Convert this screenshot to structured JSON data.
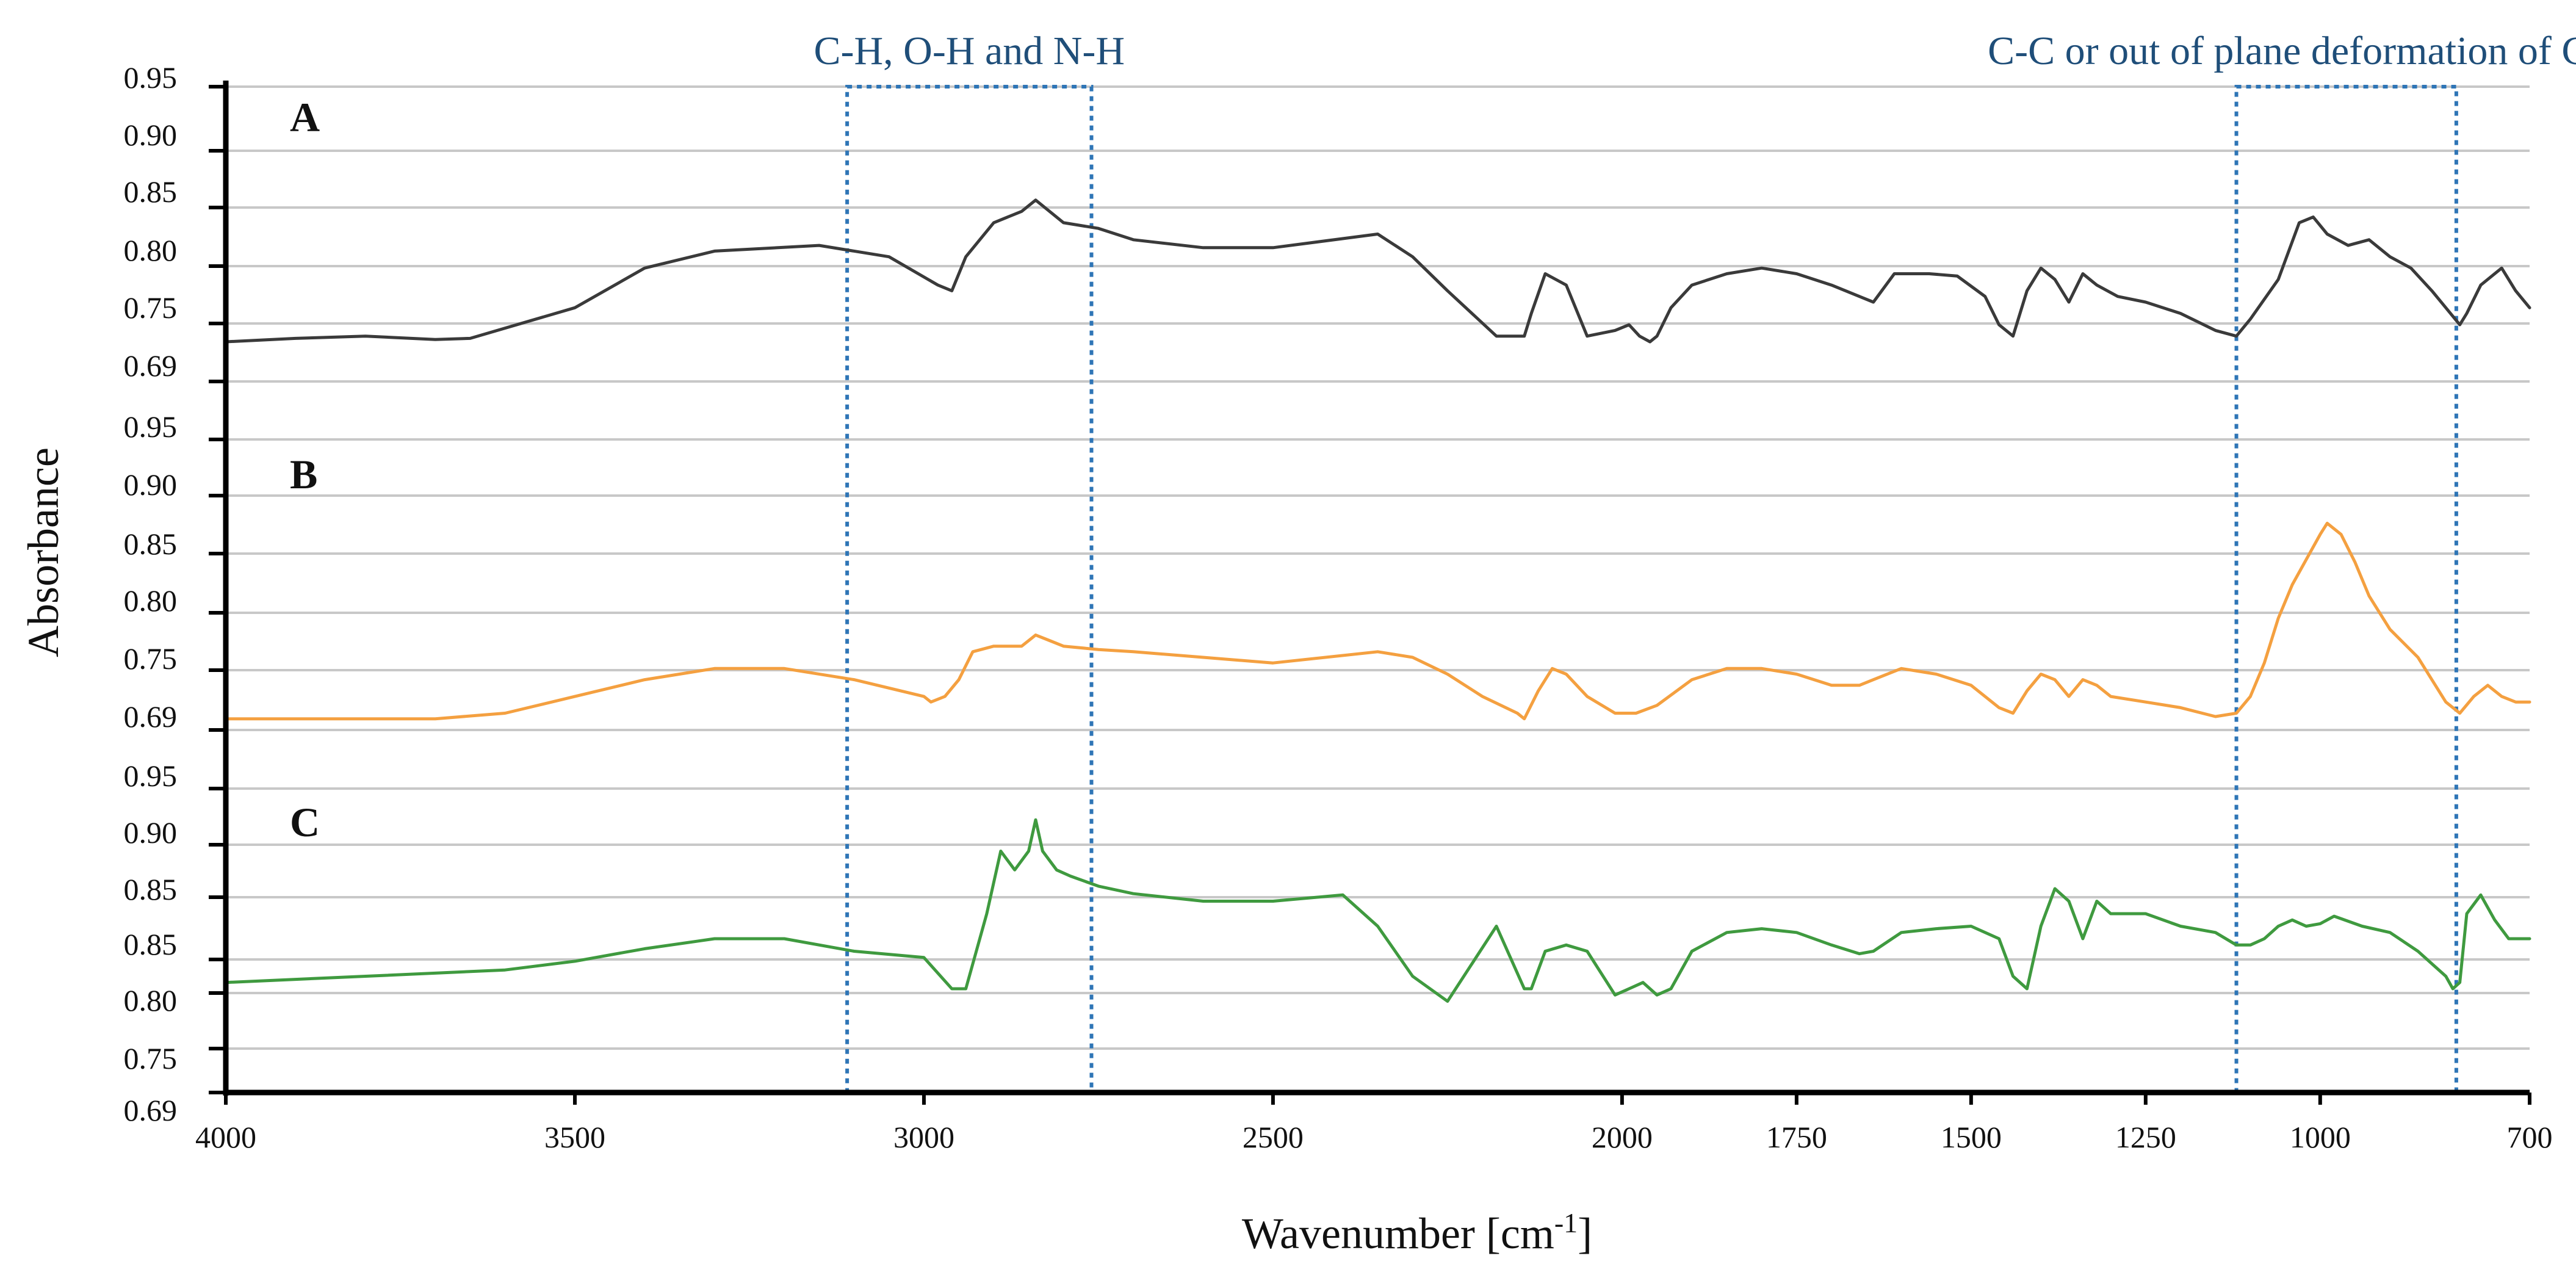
{
  "chart_data": {
    "type": "line",
    "title": "",
    "xlabel": "Wavenumber [cm⁻¹]",
    "ylabel": "Absorbance",
    "xlim": [
      4000,
      700
    ],
    "x_reversed": true,
    "x_ticks": [
      4000,
      3500,
      3000,
      2500,
      2000,
      1750,
      1500,
      1250,
      1000,
      700
    ],
    "grid": true,
    "panels": [
      {
        "label": "A",
        "color": "#3a3a3a",
        "y_ticks": [
          "0.95",
          "0.90",
          "0.85",
          "0.80",
          "0.75",
          "0.69"
        ],
        "ylim": [
          0.69,
          0.95
        ],
        "x": [
          4000,
          3900,
          3800,
          3700,
          3650,
          3500,
          3400,
          3300,
          3150,
          3050,
          2980,
          2960,
          2940,
          2900,
          2880,
          2860,
          2840,
          2820,
          2800,
          2750,
          2700,
          2600,
          2500,
          2350,
          2300,
          2250,
          2180,
          2140,
          2130,
          2110,
          2080,
          2050,
          2010,
          1990,
          1975,
          1960,
          1950,
          1930,
          1900,
          1850,
          1800,
          1750,
          1700,
          1660,
          1640,
          1610,
          1560,
          1520,
          1480,
          1460,
          1440,
          1420,
          1400,
          1380,
          1360,
          1340,
          1320,
          1290,
          1250,
          1200,
          1150,
          1120,
          1100,
          1060,
          1030,
          1010,
          990,
          960,
          930,
          900,
          870,
          840,
          820,
          800,
          790,
          770,
          740,
          720,
          700
        ],
        "y": [
          0.725,
          0.728,
          0.73,
          0.727,
          0.728,
          0.755,
          0.79,
          0.805,
          0.81,
          0.8,
          0.775,
          0.77,
          0.8,
          0.83,
          0.835,
          0.84,
          0.85,
          0.84,
          0.83,
          0.825,
          0.815,
          0.808,
          0.808,
          0.82,
          0.8,
          0.77,
          0.73,
          0.73,
          0.75,
          0.785,
          0.775,
          0.73,
          0.735,
          0.74,
          0.73,
          0.725,
          0.73,
          0.755,
          0.775,
          0.785,
          0.79,
          0.785,
          0.775,
          0.765,
          0.76,
          0.785,
          0.785,
          0.783,
          0.765,
          0.74,
          0.73,
          0.77,
          0.79,
          0.78,
          0.76,
          0.785,
          0.775,
          0.765,
          0.76,
          0.75,
          0.735,
          0.73,
          0.745,
          0.78,
          0.83,
          0.835,
          0.82,
          0.81,
          0.815,
          0.8,
          0.79,
          0.77,
          0.755,
          0.74,
          0.75,
          0.775,
          0.79,
          0.77,
          0.755
        ]
      },
      {
        "label": "B",
        "color": "#f4a040",
        "y_ticks": [
          "0.95",
          "0.90",
          "0.85",
          "0.80",
          "0.75",
          "0.69"
        ],
        "ylim": [
          0.69,
          0.95
        ],
        "x": [
          4000,
          3800,
          3700,
          3600,
          3500,
          3400,
          3300,
          3200,
          3100,
          3000,
          2990,
          2970,
          2950,
          2930,
          2900,
          2860,
          2840,
          2820,
          2800,
          2750,
          2700,
          2600,
          2500,
          2350,
          2300,
          2250,
          2200,
          2150,
          2140,
          2120,
          2100,
          2080,
          2050,
          2010,
          2000,
          1980,
          1950,
          1900,
          1850,
          1800,
          1750,
          1700,
          1660,
          1640,
          1600,
          1550,
          1500,
          1460,
          1440,
          1420,
          1400,
          1380,
          1360,
          1340,
          1320,
          1300,
          1250,
          1200,
          1150,
          1120,
          1100,
          1080,
          1060,
          1040,
          1000,
          990,
          970,
          950,
          930,
          900,
          860,
          840,
          820,
          800,
          780,
          760,
          740,
          720,
          700
        ],
        "y": [
          0.7,
          0.7,
          0.7,
          0.705,
          0.72,
          0.735,
          0.745,
          0.745,
          0.735,
          0.72,
          0.715,
          0.72,
          0.735,
          0.76,
          0.765,
          0.765,
          0.775,
          0.77,
          0.765,
          0.762,
          0.76,
          0.755,
          0.75,
          0.76,
          0.755,
          0.74,
          0.72,
          0.705,
          0.7,
          0.725,
          0.745,
          0.74,
          0.72,
          0.705,
          0.705,
          0.705,
          0.712,
          0.735,
          0.745,
          0.745,
          0.74,
          0.73,
          0.73,
          0.735,
          0.745,
          0.74,
          0.73,
          0.71,
          0.705,
          0.725,
          0.74,
          0.735,
          0.72,
          0.735,
          0.73,
          0.72,
          0.715,
          0.71,
          0.702,
          0.705,
          0.72,
          0.75,
          0.79,
          0.82,
          0.865,
          0.875,
          0.865,
          0.84,
          0.81,
          0.78,
          0.755,
          0.735,
          0.715,
          0.705,
          0.72,
          0.73,
          0.72,
          0.715,
          0.715
        ]
      },
      {
        "label": "C",
        "color": "#3f9a3f",
        "y_ticks": [
          "0.95",
          "0.90",
          "0.85",
          "0.85",
          "0.80",
          "0.75",
          "0.69"
        ],
        "ylim": [
          0.69,
          0.95
        ],
        "x": [
          4000,
          3800,
          3600,
          3500,
          3400,
          3300,
          3200,
          3100,
          3000,
          2960,
          2940,
          2910,
          2890,
          2870,
          2850,
          2840,
          2830,
          2810,
          2790,
          2750,
          2700,
          2600,
          2500,
          2400,
          2350,
          2300,
          2250,
          2180,
          2140,
          2130,
          2110,
          2080,
          2050,
          2010,
          1990,
          1970,
          1950,
          1930,
          1900,
          1850,
          1800,
          1750,
          1700,
          1660,
          1640,
          1600,
          1550,
          1500,
          1460,
          1440,
          1420,
          1400,
          1380,
          1360,
          1340,
          1320,
          1300,
          1250,
          1200,
          1150,
          1120,
          1100,
          1080,
          1060,
          1040,
          1020,
          1000,
          980,
          940,
          900,
          860,
          840,
          820,
          810,
          800,
          790,
          770,
          750,
          730,
          700
        ],
        "y": [
          0.795,
          0.8,
          0.805,
          0.812,
          0.822,
          0.83,
          0.83,
          0.82,
          0.815,
          0.79,
          0.79,
          0.85,
          0.9,
          0.885,
          0.9,
          0.925,
          0.9,
          0.885,
          0.88,
          0.872,
          0.866,
          0.86,
          0.86,
          0.865,
          0.84,
          0.8,
          0.78,
          0.84,
          0.79,
          0.79,
          0.82,
          0.825,
          0.82,
          0.785,
          0.79,
          0.795,
          0.785,
          0.79,
          0.82,
          0.835,
          0.838,
          0.835,
          0.825,
          0.818,
          0.82,
          0.835,
          0.838,
          0.84,
          0.83,
          0.8,
          0.79,
          0.84,
          0.87,
          0.86,
          0.83,
          0.86,
          0.85,
          0.85,
          0.84,
          0.835,
          0.825,
          0.825,
          0.83,
          0.84,
          0.845,
          0.84,
          0.842,
          0.848,
          0.84,
          0.835,
          0.82,
          0.81,
          0.8,
          0.79,
          0.795,
          0.85,
          0.865,
          0.845,
          0.83,
          0.83
        ]
      }
    ],
    "annotations": [
      {
        "label": "C-H, O-H and N-H",
        "x_range": [
          3110,
          2760
        ]
      },
      {
        "label": "C-C or out of plane deformation of C=C-H",
        "x_range": [
          1120,
          805
        ]
      }
    ]
  }
}
